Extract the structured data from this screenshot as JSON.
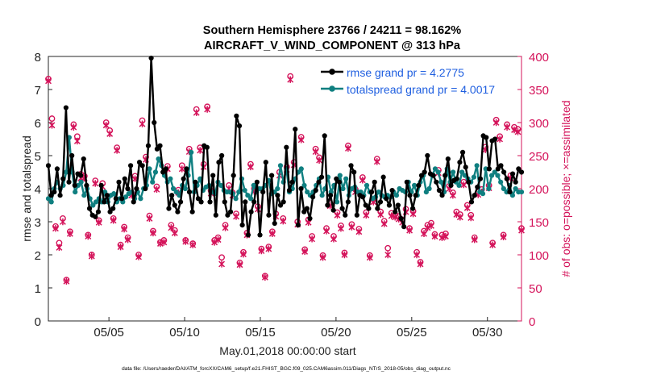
{
  "chart_data": {
    "type": "line",
    "title": "Southern Hemisphere 23766 / 24211 = 98.162%",
    "subtitle": "AIRCRAFT_V_WIND_COMPONENT @ 313 hPa",
    "xlabel": "May.01,2018 00:00:00 start",
    "ylabel_left": "rmse and totalspread",
    "ylabel_right": "# of obs: o=possible; ×=assimilated",
    "ylim_left": [
      0,
      8
    ],
    "ylim_right": [
      0,
      400
    ],
    "xlim": [
      1,
      32.25
    ],
    "x_tick_labels": [
      "05/05",
      "05/10",
      "05/15",
      "05/20",
      "05/25",
      "05/30"
    ],
    "left_tick_labels": [
      "0",
      "1",
      "2",
      "3",
      "4",
      "5",
      "6",
      "7",
      "8"
    ],
    "right_tick_labels": [
      "0",
      "50",
      "100",
      "150",
      "200",
      "250",
      "300",
      "350",
      "400"
    ],
    "footer": "data file: /Users/raeder/DAI/ATM_forcXX/CAM6_setup/f.e21.FHIST_BGC.f09_025.CAM6assim.011/Diags_NTrS_2018-05/obs_diag_output.nc",
    "colors": {
      "rmse": "#000000",
      "spread": "#0f7f80",
      "obs": "#d4135a",
      "legend_text": "#1f5fe0"
    },
    "series": [
      {
        "name": "rmse grand pr = 4.2775",
        "color": "#000000",
        "values": [
          4.7,
          3.8,
          3.9,
          4.6,
          3.8,
          4.3,
          6.45,
          4.2,
          5.0,
          4.1,
          4.45,
          4.4,
          4.9,
          4.1,
          3.4,
          3.2,
          3.15,
          3.3,
          4.1,
          3.6,
          3.8,
          3.3,
          3.4,
          3.7,
          4.2,
          3.7,
          4.3,
          4.0,
          4.7,
          3.6,
          4.0,
          4.8,
          4.7,
          4.0,
          5.3,
          7.95,
          6.0,
          5.2,
          5.3,
          4.5,
          4.6,
          3.4,
          3.8,
          3.5,
          3.3,
          3.6,
          4.3,
          4.6,
          3.9,
          3.3,
          4.2,
          3.7,
          3.6,
          5.3,
          5.25,
          3.6,
          4.4,
          3.2,
          4.8,
          5.0,
          3.6,
          3.2,
          3.3,
          4.4,
          6.2,
          5.9,
          2.9,
          3.6,
          2.6,
          3.3,
          3.6,
          4.2,
          2.6,
          3.9,
          4.8,
          3.2,
          4.4,
          2.95,
          3.8,
          3.5,
          3.6,
          5.25,
          3.95,
          4.2,
          5.8,
          2.9,
          4.0,
          3.3,
          3.4,
          3.1,
          3.75,
          3.95,
          4.2,
          4.35,
          5.6,
          3.5,
          3.8,
          3.35,
          4.3,
          4.2,
          3.4,
          3.2,
          3.6,
          4.7,
          4.5,
          3.2,
          3.8,
          3.75,
          3.5,
          3.4,
          3.9,
          4.2,
          3.4,
          3.6,
          4.35,
          3.7,
          3.5,
          3.95,
          3.3,
          3.5,
          3.1,
          2.85,
          4.2,
          3.8,
          3.4,
          3.8,
          4.1,
          4.4,
          4.5,
          5.0,
          4.45,
          4.4,
          4.2,
          3.95,
          3.8,
          4.4,
          4.9,
          4.1,
          4.25,
          4.3,
          4.8,
          5.1,
          4.65,
          4.2,
          3.6,
          3.8,
          4.05,
          4.3,
          5.6,
          5.55,
          4.6,
          5.45,
          5.5,
          4.6,
          4.7,
          4.5,
          4.3,
          3.9,
          4.45,
          4.2,
          4.6,
          4.5
        ]
      },
      {
        "name": "totalspread grand pr = 4.0017",
        "color": "#0f7f80",
        "values": [
          3.7,
          3.6,
          4.0,
          4.2,
          4.0,
          4.1,
          4.5,
          5.55,
          4.5,
          3.9,
          4.1,
          4.2,
          3.8,
          4.0,
          3.7,
          3.5,
          3.6,
          3.7,
          3.6,
          3.9,
          3.6,
          3.8,
          3.85,
          3.6,
          3.7,
          3.6,
          3.75,
          3.85,
          3.9,
          3.7,
          3.9,
          3.7,
          4.0,
          4.1,
          4.6,
          4.2,
          4.5,
          4.9,
          4.7,
          4.4,
          4.2,
          4.3,
          4.0,
          3.9,
          3.8,
          4.1,
          4.0,
          4.4,
          5.1,
          3.9,
          4.1,
          4.3,
          3.95,
          4.05,
          4.1,
          3.9,
          3.85,
          4.2,
          4.1,
          3.95,
          3.9,
          3.9,
          3.85,
          3.7,
          3.9,
          4.3,
          3.95,
          3.8,
          3.7,
          4.1,
          3.9,
          4.0,
          4.0,
          4.1,
          4.25,
          3.85,
          3.9,
          4.0,
          4.7,
          4.2,
          4.6,
          3.9,
          4.0,
          4.3,
          4.5,
          4.6,
          4.1,
          3.9,
          3.8,
          3.9,
          4.1,
          4.3,
          3.8,
          4.0,
          4.35,
          3.9,
          4.1,
          3.6,
          4.4,
          4.0,
          4.3,
          3.8,
          4.0,
          4.05,
          3.9,
          3.9,
          3.8,
          4.1,
          3.9,
          3.7,
          3.75,
          3.9,
          3.8,
          3.75,
          3.8,
          3.75,
          3.9,
          3.8,
          4.0,
          3.95,
          3.9,
          4.2,
          3.9,
          4.1,
          3.8,
          4.2,
          4.4,
          3.9,
          4.0,
          4.4,
          4.6,
          4.5,
          4.2,
          3.9,
          4.6,
          4.2,
          4.5,
          4.2,
          4.1,
          4.5,
          4.4,
          4.3,
          4.2,
          4.35,
          4.7,
          3.9,
          3.85,
          4.6,
          4.0,
          4.4,
          4.5,
          4.4,
          4.2,
          4.0,
          3.9,
          4.1,
          3.8,
          4.0,
          3.9,
          3.9
        ]
      },
      {
        "name": "obs possible",
        "color": "#d4135a",
        "values": [
          366,
          306,
          143,
          118,
          155,
          62,
          135,
          297,
          279,
          222,
          219,
          130,
          100,
          212,
          152,
          208,
          300,
          288,
          155,
          262,
          115,
          142,
          126,
          194,
          219,
          100,
          303,
          248,
          159,
          136,
          203,
          119,
          122,
          234,
          145,
          137,
          198,
          235,
          122,
          260,
          117,
          320,
          262,
          237,
          324,
          197,
          122,
          126,
          96,
          145,
          205,
          194,
          162,
          88,
          104,
          133,
          237,
          200,
          173,
          109,
          68,
          112,
          135,
          162,
          225,
          155,
          233,
          370,
          240,
          150,
          278,
          108,
          153,
          128,
          260,
          247,
          99,
          140,
          178,
          128,
          164,
          144,
          103,
          265,
          146,
          199,
          139,
          217,
          164,
          99,
          184,
          245,
          165,
          151,
          110,
          163,
          161,
          158,
          153,
          169,
          140,
          166,
          104,
          89,
          136,
          145,
          148,
          131,
          228,
          130,
          132,
          204,
          194,
          165,
          161,
          210,
          175,
          160,
          126,
          195,
          199,
          263,
          205,
          118,
          304,
          279,
          130,
          297,
          220,
          293,
          290,
          140
        ]
      },
      {
        "name": "obs assimilated",
        "color": "#d4135a",
        "values": [
          363,
          296,
          140,
          111,
          150,
          60,
          132,
          293,
          272,
          216,
          216,
          128,
          98,
          208,
          149,
          203,
          296,
          283,
          152,
          258,
          112,
          139,
          123,
          190,
          215,
          97,
          298,
          244,
          155,
          133,
          199,
          117,
          119,
          230,
          141,
          133,
          194,
          230,
          120,
          256,
          115,
          315,
          258,
          233,
          320,
          193,
          119,
          123,
          86,
          141,
          200,
          190,
          158,
          85,
          101,
          130,
          233,
          196,
          169,
          106,
          66,
          109,
          132,
          158,
          220,
          151,
          229,
          365,
          236,
          146,
          274,
          105,
          149,
          124,
          256,
          243,
          96,
          136,
          174,
          124,
          160,
          140,
          100,
          261,
          142,
          195,
          135,
          213,
          160,
          96,
          180,
          241,
          161,
          147,
          100,
          159,
          157,
          154,
          149,
          165,
          137,
          162,
          100,
          86,
          132,
          141,
          144,
          128,
          224,
          126,
          128,
          200,
          190,
          161,
          157,
          206,
          171,
          156,
          123,
          191,
          195,
          259,
          201,
          115,
          300,
          275,
          127,
          293,
          216,
          289,
          286,
          137
        ]
      }
    ]
  }
}
